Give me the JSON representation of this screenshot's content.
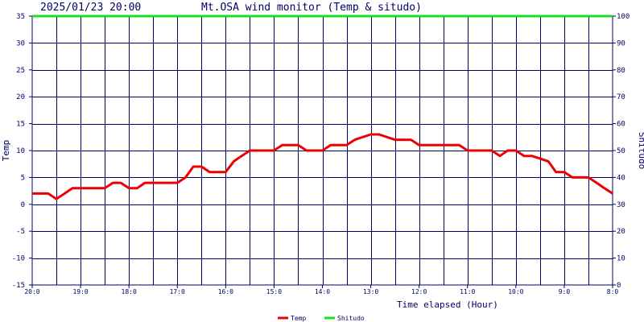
{
  "header": {
    "datetime": "2025/01/23 20:00",
    "title": "Mt.OSA wind monitor (Temp & situdo)"
  },
  "chart_data": {
    "type": "line",
    "title": "Mt.OSA wind monitor (Temp & situdo)",
    "xlabel": "Time elapsed (Hour)",
    "ylabel": "Temp",
    "y2label": "Shitudo",
    "ylim": [
      -15,
      35
    ],
    "y2lim": [
      0,
      100
    ],
    "yticks": [
      "35",
      "30",
      "25",
      "20",
      "15",
      "10",
      "5",
      "0",
      "-5",
      "-10",
      "-15"
    ],
    "y2ticks": [
      "100",
      "90",
      "80",
      "70",
      "60",
      "50",
      "40",
      "30",
      "20",
      "10",
      "0"
    ],
    "xticks": [
      "20:0",
      "19:0",
      "18:0",
      "17:0",
      "16:0",
      "15:0",
      "14:0",
      "13:0",
      "12:0",
      "11:0",
      "10:0",
      "9:0",
      "8:0"
    ],
    "xlim": [
      0,
      12
    ],
    "grid": true,
    "legend_position": "bottom",
    "colors": {
      "temp": "#ee0000",
      "shitudo": "#22dd22",
      "grid": "#000066",
      "text": "#000066"
    },
    "series": [
      {
        "name": "Temp",
        "axis": "left",
        "x": [
          0,
          0.33,
          0.5,
          0.67,
          0.83,
          1.5,
          1.67,
          1.83,
          2,
          2.17,
          2.33,
          2.5,
          3,
          3.17,
          3.33,
          3.5,
          3.67,
          4,
          4.17,
          4.33,
          4.5,
          5,
          5.17,
          5.5,
          5.67,
          6,
          6.17,
          6.5,
          6.67,
          7,
          7.17,
          7.5,
          7.67,
          7.83,
          8,
          8.83,
          9,
          9.5,
          9.67,
          9.83,
          10,
          10.17,
          10.33,
          10.67,
          10.83,
          11,
          11.17,
          11.5,
          11.67,
          11.83,
          12
        ],
        "y": [
          2,
          2,
          1,
          2,
          3,
          3,
          4,
          4,
          3,
          3,
          4,
          4,
          4,
          5,
          7,
          7,
          6,
          6,
          8,
          9,
          10,
          10,
          11,
          11,
          10,
          10,
          11,
          11,
          12,
          13,
          13,
          12,
          12,
          12,
          11,
          11,
          10,
          10,
          9,
          10,
          10,
          9,
          9,
          8,
          6,
          6,
          5,
          5,
          4,
          3,
          2
        ]
      },
      {
        "name": "Shitudo",
        "axis": "right",
        "x": [
          0,
          12
        ],
        "y": [
          100,
          100
        ]
      }
    ]
  }
}
